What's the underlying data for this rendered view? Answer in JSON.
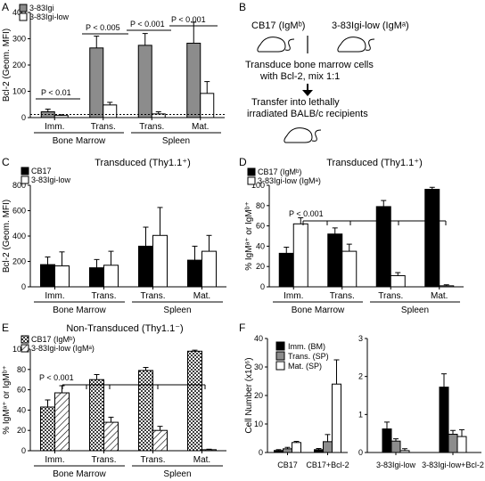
{
  "colors": {
    "dark": "#000000",
    "gray": "#8c8c8c",
    "white": "#ffffff"
  },
  "panel_letters": [
    "A",
    "B",
    "C",
    "D",
    "E",
    "F"
  ],
  "chart_data": [
    {
      "id": "A",
      "type": "bar",
      "ylabel": "Bcl-2 (Geom. MFI)",
      "ylim": [
        0,
        400
      ],
      "yticks": [
        "0",
        "100",
        "200",
        "300",
        "400"
      ],
      "categories": [
        "Imm.",
        "Trans.",
        "Trans.",
        "Mat."
      ],
      "groups": [
        "Bone Marrow",
        "Spleen"
      ],
      "legend": [
        "3-83Igi",
        "3-83Igi-low"
      ],
      "series": [
        {
          "name": "3-83Igi",
          "fill": "gray",
          "values": [
            22,
            265,
            275,
            283
          ],
          "errors": [
            10,
            45,
            45,
            80
          ]
        },
        {
          "name": "3-83Igi-low",
          "fill": "white",
          "values": [
            8,
            48,
            14,
            92
          ],
          "errors": [
            3,
            10,
            8,
            45
          ]
        }
      ],
      "pvalues": [
        "P < 0.01",
        "P < 0.005",
        "P < 0.001",
        "P < 0.001"
      ],
      "dotted_baseline": 12
    },
    {
      "id": "C",
      "type": "bar",
      "title": "Transduced (Thy1.1⁺)",
      "ylabel": "Bcl-2 (Geom. MFI)",
      "ylim": [
        0,
        800
      ],
      "yticks": [
        "0",
        "200",
        "400",
        "600",
        "800"
      ],
      "categories": [
        "Imm.",
        "Trans.",
        "Trans.",
        "Mat."
      ],
      "groups": [
        "Bone Marrow",
        "Spleen"
      ],
      "legend": [
        "CB17",
        "3-83Igi-low"
      ],
      "series": [
        {
          "name": "CB17",
          "fill": "dark",
          "values": [
            175,
            150,
            320,
            210
          ],
          "errors": [
            60,
            65,
            150,
            110
          ]
        },
        {
          "name": "3-83Igi-low",
          "fill": "white",
          "values": [
            165,
            170,
            405,
            280
          ],
          "errors": [
            110,
            110,
            220,
            125
          ]
        }
      ]
    },
    {
      "id": "D",
      "type": "bar",
      "title": "Transduced (Thy1.1⁺)",
      "ylabel": "% IgMᵃ⁺ or IgMᵇ⁺",
      "ylim": [
        0,
        100
      ],
      "yticks": [
        "0",
        "20",
        "40",
        "60",
        "80",
        "100"
      ],
      "categories": [
        "Imm.",
        "Trans.",
        "Trans.",
        "Mat."
      ],
      "groups": [
        "Bone Marrow",
        "Spleen"
      ],
      "legend": [
        "CB17 (IgMᵇ)",
        "3-83Igi-low (IgMᵃ)"
      ],
      "series": [
        {
          "name": "CB17 (IgMᵇ)",
          "fill": "dark",
          "values": [
            33,
            52,
            79,
            96
          ],
          "errors": [
            6,
            6,
            6,
            2
          ]
        },
        {
          "name": "3-83Igi-low (IgMᵃ)",
          "fill": "white",
          "values": [
            62,
            35,
            11,
            1
          ],
          "errors": [
            6,
            7,
            3,
            1
          ]
        }
      ],
      "pvalue": "P < 0.001"
    },
    {
      "id": "E",
      "type": "bar",
      "title": "Non-Transduced (Thy1.1⁻)",
      "ylabel": "% IgMᵃ⁺ or IgMᵇ⁺",
      "ylim": [
        0,
        100
      ],
      "yticks": [
        "0",
        "20",
        "40",
        "60",
        "80",
        "100"
      ],
      "categories": [
        "Imm.",
        "Trans.",
        "Trans.",
        "Mat."
      ],
      "groups": [
        "Bone Marrow",
        "Spleen"
      ],
      "legend": [
        "CB17 (IgMᵇ)",
        "3-83Igi-low (IgMᵃ)"
      ],
      "series": [
        {
          "name": "CB17 (IgMᵇ)",
          "fill": "dots",
          "values": [
            43,
            70,
            79,
            98
          ],
          "errors": [
            7,
            5,
            3,
            1
          ]
        },
        {
          "name": "3-83Igi-low (IgMᵃ)",
          "fill": "hatch",
          "values": [
            57,
            28,
            20,
            1
          ],
          "errors": [
            7,
            5,
            4,
            0.5
          ]
        }
      ],
      "pvalue": "P < 0.001"
    },
    {
      "id": "F",
      "type": "bar",
      "ylabel": "Cell Number (x10⁶)",
      "ylim": [
        0,
        40
      ],
      "yticks": [
        "0",
        "10",
        "20",
        "30",
        "40"
      ],
      "legend": [
        "Imm. (BM)",
        "Trans. (SP)",
        "Mat. (SP)"
      ],
      "left": {
        "categories": [
          "CB17",
          "CB17+Bcl-2"
        ],
        "series": [
          {
            "name": "Imm. (BM)",
            "fill": "dark",
            "values": [
              0.7,
              1.0
            ],
            "errors": [
              0.3,
              0.4
            ]
          },
          {
            "name": "Trans. (SP)",
            "fill": "gray",
            "values": [
              1.3,
              3.8
            ],
            "errors": [
              0.5,
              2.5
            ]
          },
          {
            "name": "Mat. (SP)",
            "fill": "white",
            "values": [
              3.5,
              24
            ],
            "errors": [
              0.4,
              8.5
            ]
          }
        ]
      },
      "right": {
        "ylim": [
          0,
          3
        ],
        "yticks": [
          "0",
          "1",
          "2",
          "3"
        ],
        "categories": [
          "3-83Igi-low",
          "3-83Igi-low+Bcl-2"
        ],
        "series": [
          {
            "name": "Imm. (BM)",
            "fill": "dark",
            "values": [
              0.62,
              1.72
            ],
            "errors": [
              0.18,
              0.35
            ]
          },
          {
            "name": "Trans. (SP)",
            "fill": "gray",
            "values": [
              0.3,
              0.48
            ],
            "errors": [
              0.06,
              0.1
            ]
          },
          {
            "name": "Mat. (SP)",
            "fill": "white",
            "values": [
              0.05,
              0.42
            ],
            "errors": [
              0.05,
              0.18
            ]
          }
        ]
      }
    }
  ],
  "diagram": {
    "mouse1": "CB17 (IgMᵇ)",
    "mouse2": "3-83Igi-low (IgMᵃ)",
    "step1_line1": "Transduce bone marrow cells",
    "step1_line2": "with Bcl-2, mix 1:1",
    "step2_line1": "Transfer into lethally",
    "step2_line2": "irradiated BALB/c recipients"
  }
}
